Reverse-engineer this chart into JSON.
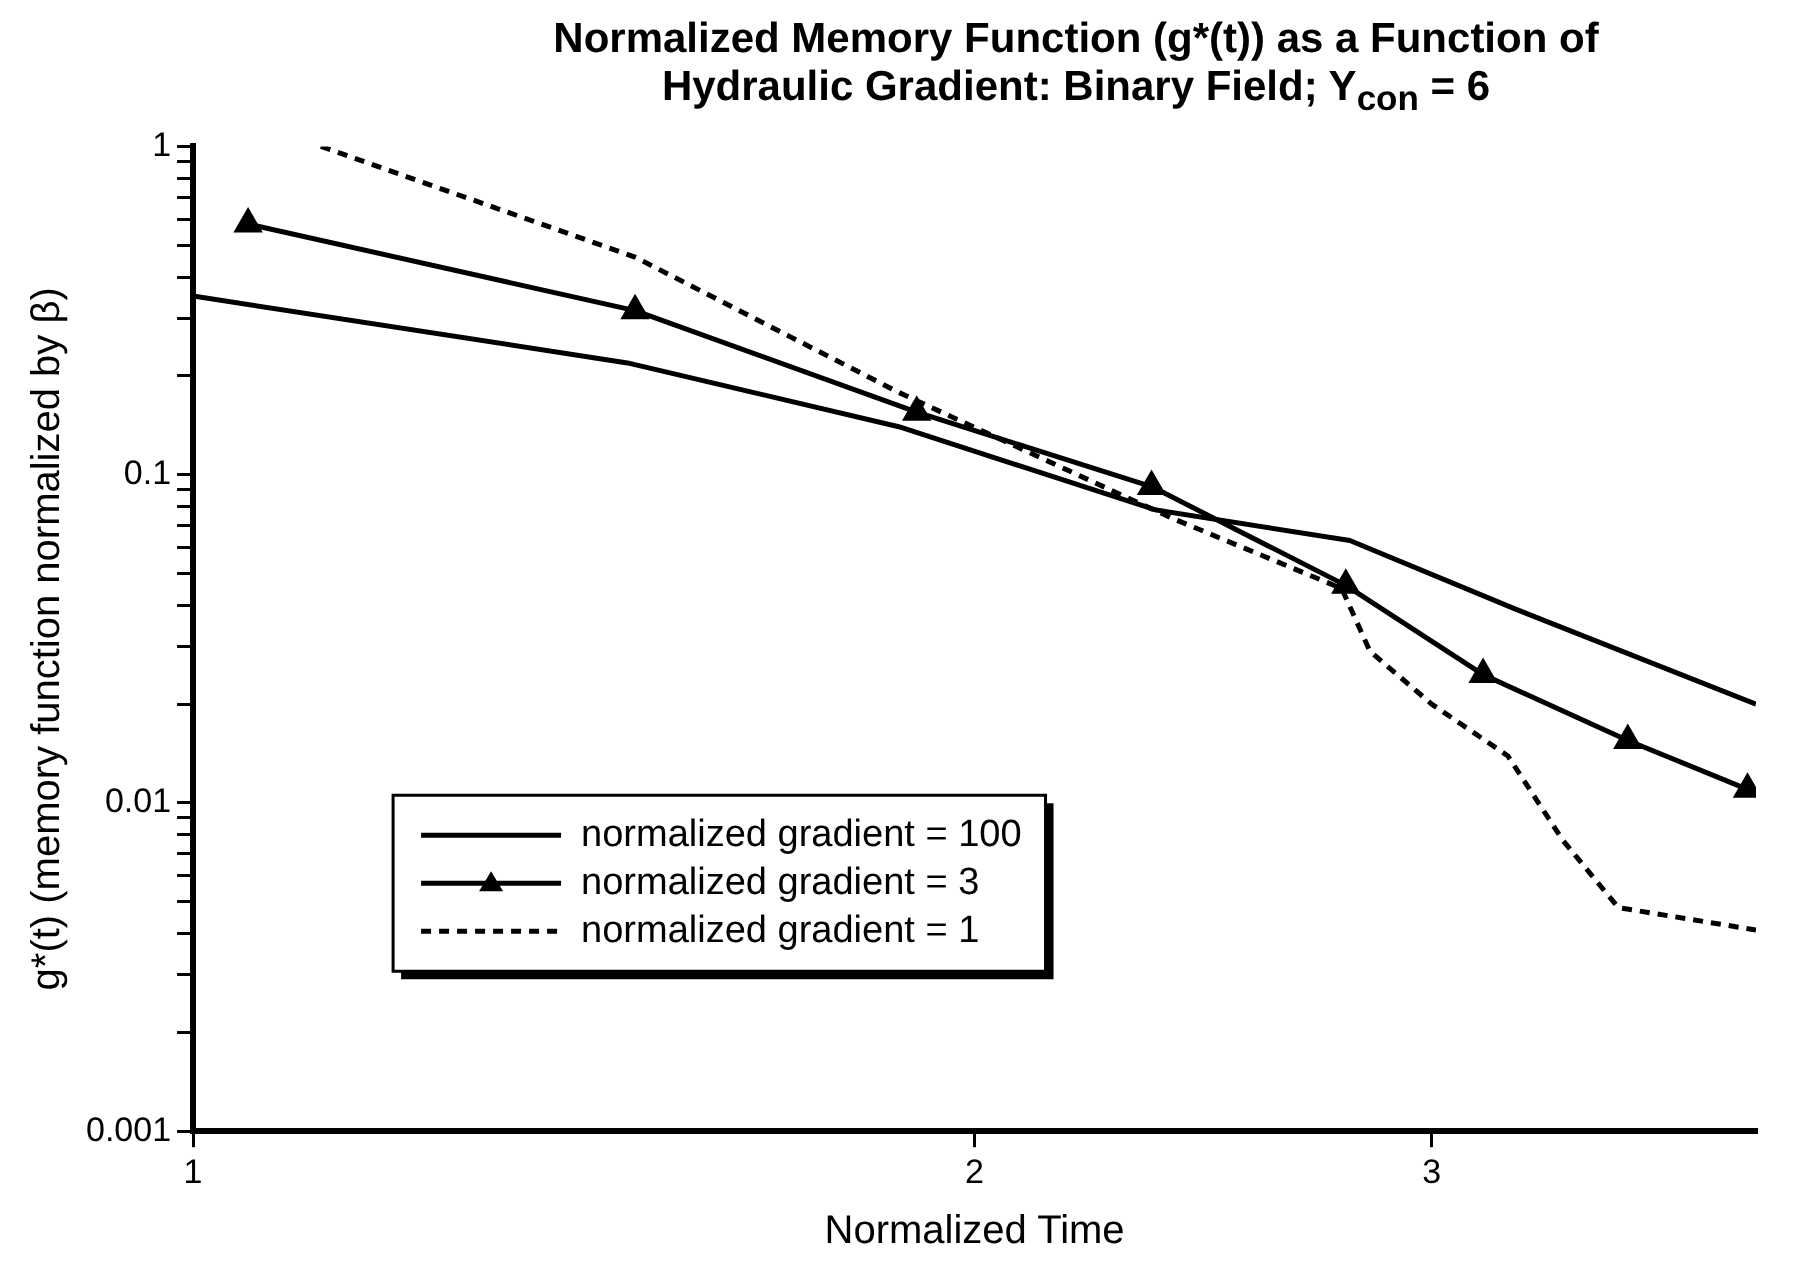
{
  "chart_data": {
    "type": "line",
    "title": "Normalized Memory Function (g*(t)) as a Function of Hydraulic Gradient: Binary Field; Y$_{con}$ = 6",
    "xlabel": "Normalized Time",
    "ylabel": "g*(t) (memory function normalized by β)",
    "log": "xy",
    "grid": false,
    "legend": "bottom left",
    "xlim": [
      1,
      4
    ],
    "xticks": [
      1,
      2,
      3
    ],
    "ylim": [
      0.001,
      1
    ],
    "yticks": [
      0.001,
      {
        "value": 0.002,
        "label": null
      },
      {
        "value": 0.003,
        "label": null
      },
      {
        "value": 0.004,
        "label": null
      },
      {
        "value": 0.005,
        "label": null
      },
      {
        "value": 0.006,
        "label": null
      },
      {
        "value": 0.007,
        "label": null
      },
      {
        "value": 0.008,
        "label": null
      },
      {
        "value": 0.009,
        "label": null
      },
      0.01,
      {
        "value": 0.02,
        "label": null
      },
      {
        "value": 0.03,
        "label": null
      },
      {
        "value": 0.04,
        "label": null
      },
      {
        "value": 0.05,
        "label": null
      },
      {
        "value": 0.06,
        "label": null
      },
      {
        "value": 0.07,
        "label": null
      },
      {
        "value": 0.08,
        "label": null
      },
      {
        "value": 0.09,
        "label": null
      },
      0.1,
      {
        "value": 0.2,
        "label": null
      },
      {
        "value": 0.3,
        "label": null
      },
      {
        "value": 0.4,
        "label": null
      },
      {
        "value": 0.5,
        "label": null
      },
      {
        "value": 0.6,
        "label": null
      },
      {
        "value": 0.7,
        "label": null
      },
      {
        "value": 0.8,
        "label": null
      },
      {
        "value": 0.9,
        "label": null
      },
      1
    ],
    "series": [
      {
        "name": "normalized gradient = 100",
        "color": "#000000",
        "marker": "none",
        "line_style": "solid",
        "x": [
          1,
          1.47,
          1.87,
          2.35,
          2.79,
          3.23,
          4
        ],
        "values": [
          0.35,
          0.219,
          0.14,
          0.078,
          0.063,
          0.039,
          0.02
        ]
      },
      {
        "name": "normalized gradient = 3",
        "color": "#000000",
        "marker": "triangle",
        "line_style": "solid",
        "x": [
          1.05,
          1.48,
          1.9,
          2.34,
          2.78,
          3.14,
          3.57,
          3.97
        ],
        "values": [
          0.58,
          0.316,
          0.155,
          0.092,
          0.046,
          0.0246,
          0.0155,
          0.011
        ]
      },
      {
        "name": "normalized gradient = 1",
        "color": "#000000",
        "marker": "none",
        "line_style": "dashed",
        "x": [
          1.12,
          1.48,
          1.87,
          2.38,
          2.77,
          2.84,
          3.0,
          3.21,
          3.37,
          3.54,
          4
        ],
        "values": [
          1,
          0.46,
          0.178,
          0.074,
          0.045,
          0.029,
          0.02,
          0.0139,
          0.0077,
          0.0048,
          0.0041
        ]
      }
    ]
  }
}
